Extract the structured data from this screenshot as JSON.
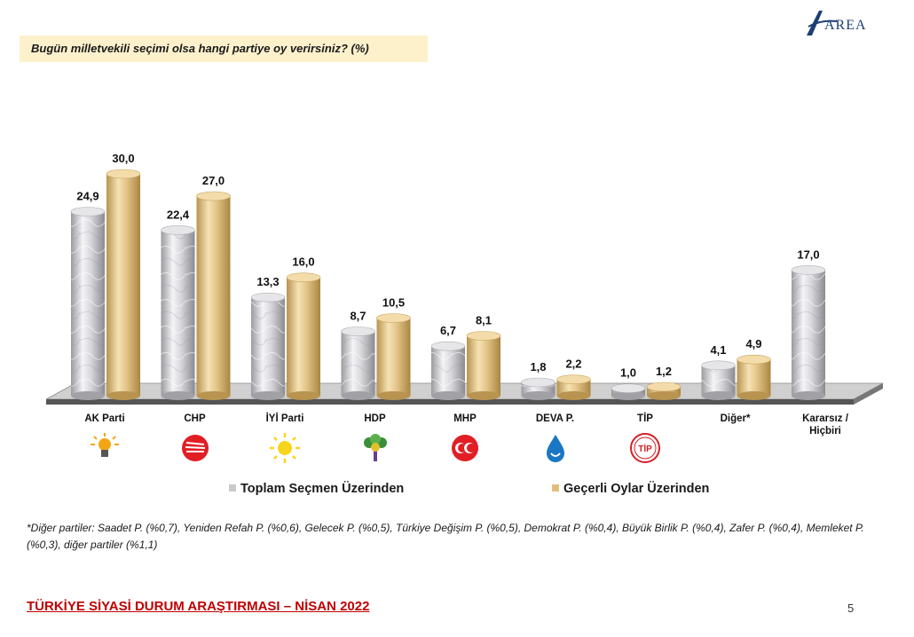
{
  "question": "Bugün milletvekili seçimi olsa hangi partiye oy verirsiniz? (%)",
  "logo": {
    "text": "AREA"
  },
  "chart_data": {
    "type": "bar",
    "title": "",
    "categories": [
      "AK Parti",
      "CHP",
      "İYİ Parti",
      "HDP",
      "MHP",
      "DEVA P.",
      "TİP",
      "Diğer*",
      "Kararsız / Hiçbiri"
    ],
    "series": [
      {
        "name": "Toplam Seçmen Üzerinden",
        "values": [
          24.9,
          22.4,
          13.3,
          8.7,
          6.7,
          1.8,
          1.0,
          4.1,
          17.0
        ],
        "labels": [
          "24,9",
          "22,4",
          "13,3",
          "8,7",
          "6,7",
          "1,8",
          "1,0",
          "4,1",
          "17,0"
        ],
        "color": "#d9d9dc"
      },
      {
        "name": "Geçerli Oylar Üzerinden",
        "values": [
          30.0,
          27.0,
          16.0,
          10.5,
          8.1,
          2.2,
          1.2,
          4.9,
          null
        ],
        "labels": [
          "30,0",
          "27,0",
          "16,0",
          "10,5",
          "8,1",
          "2,2",
          "1,2",
          "4,9",
          ""
        ],
        "color": "#e5c98d"
      }
    ],
    "ylim": [
      0,
      30
    ],
    "grid": false,
    "legend_position": "bottom"
  },
  "party_icons": [
    "bulb-icon",
    "six-arrows-icon",
    "sun-icon",
    "tree-icon",
    "crescents-icon",
    "water-drop-icon",
    "tip-logo-icon",
    "",
    ""
  ],
  "tip_logo_text": "TİP",
  "footnote": "*Diğer partiler: Saadet P. (%0,7), Yeniden Refah P. (%0,6), Gelecek P. (%0,5), Türkiye Değişim P. (%0,5), Demokrat P. (%0,4), Büyük Birlik P. (%0,4), Zafer P. (%0,4), Memleket P. (%0,3), diğer partiler (%1,1)",
  "footer_title": "TÜRKİYE SİYASİ DURUM ARAŞTIRMASI – NİSAN 2022",
  "page_number": "5"
}
